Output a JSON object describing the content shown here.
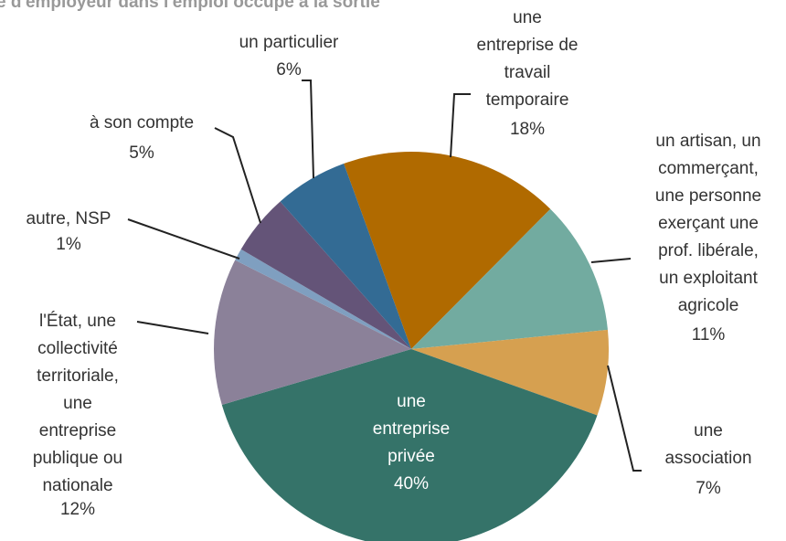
{
  "chart_data": {
    "type": "pie",
    "title": "e d'employeur dans l'emploi occupé à la sortie",
    "categories": [
      "une\nentreprise de\ntravail\ntemporaire",
      "un artisan, un\ncommerçant,\nune personne\nexerçant une\nprof. libérale,\nun exploitant\nagricole",
      "une\nassociation",
      "une\nentreprise\nprivée",
      "l'État, une\ncollectivité\nterritoriale,\nune\nentreprise\npublique  ou\nnationale",
      "autre, NSP",
      "à son compte",
      "un particulier"
    ],
    "values": [
      18,
      11,
      7,
      40,
      12,
      1,
      5,
      6
    ],
    "value_labels": [
      "18%",
      "11%",
      "7%",
      "40%",
      "12%",
      "1%",
      "5%",
      "6%"
    ],
    "colors": [
      "#b06a00",
      "#72aba0",
      "#d6a050",
      "#357369",
      "#8b8199",
      "#7f9fc0",
      "#645478",
      "#336b94"
    ]
  }
}
